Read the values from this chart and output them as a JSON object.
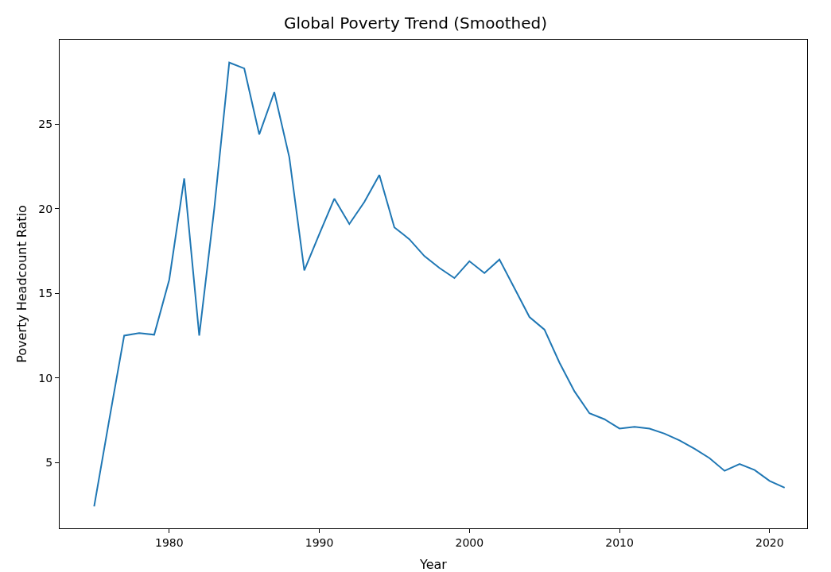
{
  "chart_data": {
    "type": "line",
    "title": "Global Poverty Trend (Smoothed)",
    "xlabel": "Year",
    "ylabel": "Poverty Headcount Ratio",
    "x": [
      1975,
      1976,
      1977,
      1978,
      1979,
      1980,
      1981,
      1982,
      1983,
      1984,
      1985,
      1986,
      1987,
      1988,
      1989,
      1990,
      1991,
      1992,
      1993,
      1994,
      1995,
      1996,
      1997,
      1998,
      1999,
      2000,
      2001,
      2002,
      2003,
      2004,
      2005,
      2006,
      2007,
      2008,
      2009,
      2010,
      2011,
      2012,
      2013,
      2014,
      2015,
      2016,
      2017,
      2018,
      2019,
      2020,
      2021
    ],
    "series": [
      {
        "color": "#1f77b4",
        "values": [
          2.4,
          7.5,
          12.5,
          12.65,
          12.55,
          15.8,
          21.8,
          12.5,
          20,
          28.65,
          28.3,
          24.4,
          26.9,
          23.05,
          16.35,
          18.5,
          20.6,
          19.1,
          20.4,
          22.0,
          18.9,
          18.2,
          17.2,
          16.5,
          15.9,
          16.9,
          16.2,
          17.0,
          15.3,
          13.6,
          12.85,
          10.9,
          9.2,
          7.9,
          7.55,
          7.0,
          7.1,
          7.0,
          6.7,
          6.3,
          5.8,
          5.25,
          4.5,
          4.9,
          4.55,
          3.9,
          3.5
        ]
      }
    ],
    "xlim": [
      1972.7,
      2022.5
    ],
    "ylim": [
      1.1,
      30
    ],
    "xticks": [
      1980,
      1990,
      2000,
      2010,
      2020
    ],
    "yticks": [
      5,
      10,
      15,
      20,
      25
    ],
    "line_style": "solid"
  }
}
